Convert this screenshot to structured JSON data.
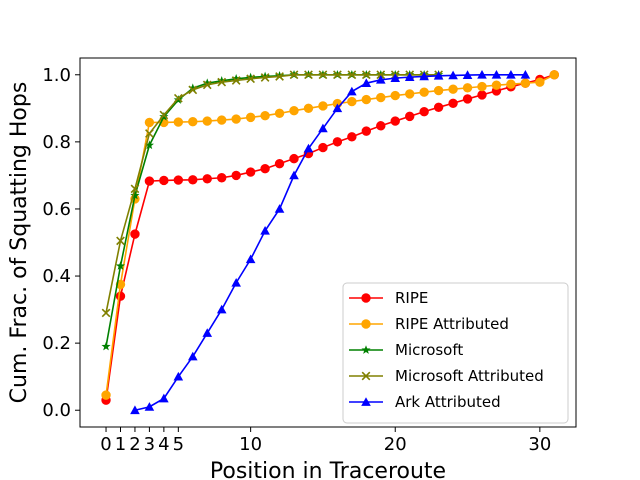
{
  "chart_data": {
    "type": "line",
    "xlabel": "Position in Traceroute",
    "ylabel": "Cum. Frac. of Squatting Hops",
    "xlim": [
      -1.8,
      32.5
    ],
    "ylim": [
      -0.05,
      1.05
    ],
    "xticks": [
      0,
      1,
      2,
      3,
      4,
      5,
      10,
      20,
      30
    ],
    "yticks": [
      0.0,
      0.2,
      0.4,
      0.6,
      0.8,
      1.0
    ],
    "xtick_labels": [
      "0",
      "1",
      "2",
      "3",
      "4",
      "5",
      "10",
      "20",
      "30"
    ],
    "ytick_labels": [
      "0.0",
      "0.2",
      "0.4",
      "0.6",
      "0.8",
      "1.0"
    ],
    "grid": false,
    "legend_position": "lower-right",
    "series": [
      {
        "name": "RIPE",
        "color": "#ff0000",
        "marker": "circle",
        "x": [
          0,
          1,
          2,
          3,
          4,
          5,
          6,
          7,
          8,
          9,
          10,
          11,
          12,
          13,
          14,
          15,
          16,
          17,
          18,
          19,
          20,
          21,
          22,
          23,
          24,
          25,
          26,
          27,
          28,
          29,
          30,
          31
        ],
        "y": [
          0.03,
          0.34,
          0.525,
          0.683,
          0.685,
          0.686,
          0.687,
          0.69,
          0.693,
          0.7,
          0.71,
          0.72,
          0.735,
          0.75,
          0.765,
          0.783,
          0.8,
          0.815,
          0.832,
          0.848,
          0.862,
          0.876,
          0.89,
          0.903,
          0.915,
          0.928,
          0.94,
          0.952,
          0.964,
          0.975,
          0.986,
          1.0
        ]
      },
      {
        "name": "RIPE Attributed",
        "color": "#ffa500",
        "marker": "circle",
        "x": [
          0,
          1,
          2,
          3,
          4,
          5,
          6,
          7,
          8,
          9,
          10,
          11,
          12,
          13,
          14,
          15,
          16,
          17,
          18,
          19,
          20,
          21,
          22,
          23,
          24,
          25,
          26,
          27,
          28,
          29,
          30,
          31
        ],
        "y": [
          0.045,
          0.375,
          0.63,
          0.858,
          0.858,
          0.859,
          0.86,
          0.862,
          0.865,
          0.868,
          0.873,
          0.878,
          0.885,
          0.893,
          0.9,
          0.907,
          0.914,
          0.92,
          0.926,
          0.932,
          0.938,
          0.943,
          0.948,
          0.953,
          0.957,
          0.961,
          0.965,
          0.969,
          0.972,
          0.975,
          0.978,
          1.0
        ]
      },
      {
        "name": "Microsoft",
        "color": "#008000",
        "marker": "star",
        "x": [
          0,
          1,
          2,
          3,
          4,
          5,
          6,
          7,
          8,
          9,
          10,
          11,
          12,
          13,
          14,
          15,
          16,
          17,
          18,
          19,
          20,
          21,
          22,
          23
        ],
        "y": [
          0.19,
          0.43,
          0.64,
          0.79,
          0.875,
          0.925,
          0.96,
          0.975,
          0.982,
          0.988,
          0.992,
          0.995,
          0.997,
          1.0,
          1.0,
          1.0,
          1.0,
          1.0,
          1.0,
          1.0,
          1.0,
          1.0,
          1.0,
          1.0
        ]
      },
      {
        "name": "Microsoft Attributed",
        "color": "#808000",
        "marker": "x",
        "x": [
          0,
          1,
          2,
          3,
          4,
          5,
          6,
          7,
          8,
          9,
          10,
          11,
          12,
          13,
          14,
          15,
          16,
          17,
          18,
          19,
          20,
          21,
          22,
          23
        ],
        "y": [
          0.29,
          0.505,
          0.66,
          0.825,
          0.88,
          0.93,
          0.955,
          0.97,
          0.978,
          0.983,
          0.988,
          0.992,
          0.995,
          1.0,
          1.0,
          1.0,
          1.0,
          1.0,
          1.0,
          1.0,
          1.0,
          1.0,
          1.0,
          1.0
        ]
      },
      {
        "name": "Ark Attributed",
        "color": "#0000ff",
        "marker": "triangle",
        "x": [
          2,
          3,
          4,
          5,
          6,
          7,
          8,
          9,
          10,
          11,
          12,
          13,
          14,
          15,
          16,
          17,
          18,
          19,
          20,
          21,
          22,
          23,
          24,
          25,
          26,
          27,
          28,
          29
        ],
        "y": [
          0.0,
          0.01,
          0.035,
          0.1,
          0.16,
          0.23,
          0.3,
          0.38,
          0.45,
          0.535,
          0.6,
          0.7,
          0.78,
          0.84,
          0.9,
          0.95,
          0.975,
          0.985,
          0.99,
          0.993,
          0.995,
          0.997,
          0.998,
          0.999,
          1.0,
          1.0,
          1.0,
          1.0
        ]
      }
    ]
  }
}
